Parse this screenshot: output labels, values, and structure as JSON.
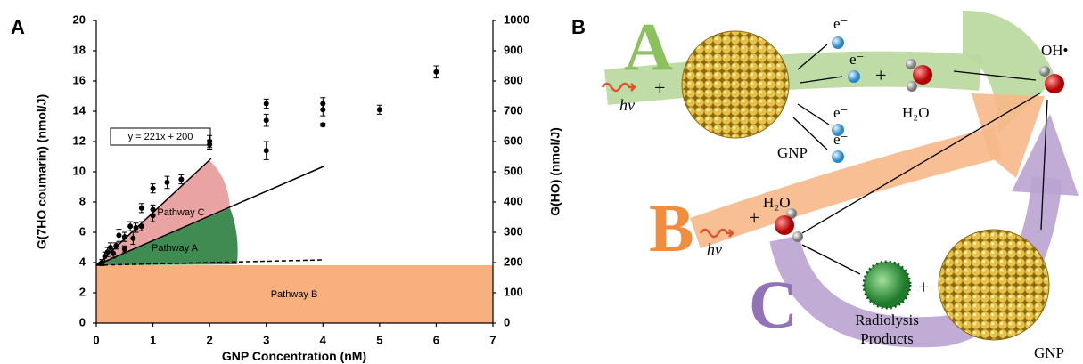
{
  "chart_data": {
    "type": "scatter",
    "panel_label": "A",
    "xlabel": "GNP Concentration (nM)",
    "ylabel": "G(7HO coumarin)  (nmol/J)",
    "y2label": "G(HO)  (nmol/J)",
    "x": [
      0.1,
      0.15,
      0.2,
      0.25,
      0.3,
      0.35,
      0.4,
      0.5,
      0.5,
      0.6,
      0.65,
      0.7,
      0.8,
      0.8,
      1.0,
      1.0,
      1.0,
      1.25,
      1.5,
      2.0,
      2.0,
      3.0,
      3.0,
      3.0,
      4.0,
      4.0,
      4.0,
      5.0,
      6.0
    ],
    "values": [
      4.0,
      4.4,
      4.7,
      5.0,
      4.6,
      5.1,
      5.8,
      4.9,
      5.7,
      6.4,
      5.6,
      6.3,
      6.4,
      7.6,
      7.1,
      7.5,
      8.9,
      9.3,
      9.5,
      11.8,
      12.0,
      11.4,
      13.4,
      14.5,
      13.1,
      14.1,
      14.5,
      14.1,
      16.6
    ],
    "errors": [
      0.2,
      0.3,
      0.3,
      0.3,
      0.3,
      0.2,
      0.4,
      0.2,
      0.3,
      0.3,
      0.4,
      0.3,
      0.3,
      0.3,
      0.4,
      0.3,
      0.3,
      0.4,
      0.3,
      0.3,
      0.4,
      0.6,
      0.4,
      0.3,
      0.1,
      0.4,
      0.4,
      0.3,
      0.4
    ],
    "color": "#000000",
    "xlim": [
      0,
      7
    ],
    "xticks": [
      0,
      1,
      2,
      3,
      4,
      5,
      6,
      7
    ],
    "ylim": [
      0,
      20
    ],
    "yticks": [
      0,
      2,
      4,
      6,
      8,
      10,
      12,
      14,
      16,
      18,
      20
    ],
    "y2lim": [
      0,
      1000
    ],
    "y2ticks": [
      0,
      100,
      200,
      300,
      400,
      500,
      600,
      700,
      800,
      900,
      1000
    ],
    "annotations": [
      "y = 221x + 200",
      "Pathway C",
      "Pathway A",
      "Pathway B"
    ]
  },
  "diagram": {
    "panel_label": "B",
    "pathway_labels": [
      "A",
      "B",
      "C"
    ],
    "photon": [
      "hν",
      "hν"
    ],
    "plus": [
      "+",
      "+",
      "+",
      "+"
    ],
    "electrons": [
      "e⁻",
      "e⁻",
      "e⁻",
      "e⁻"
    ],
    "water": [
      "H₂O",
      "H₂O"
    ],
    "hydroxyl": "OH•",
    "gnp": [
      "GNP",
      "GNP"
    ],
    "radiolysis": [
      "Radiolysis",
      "Products"
    ]
  }
}
